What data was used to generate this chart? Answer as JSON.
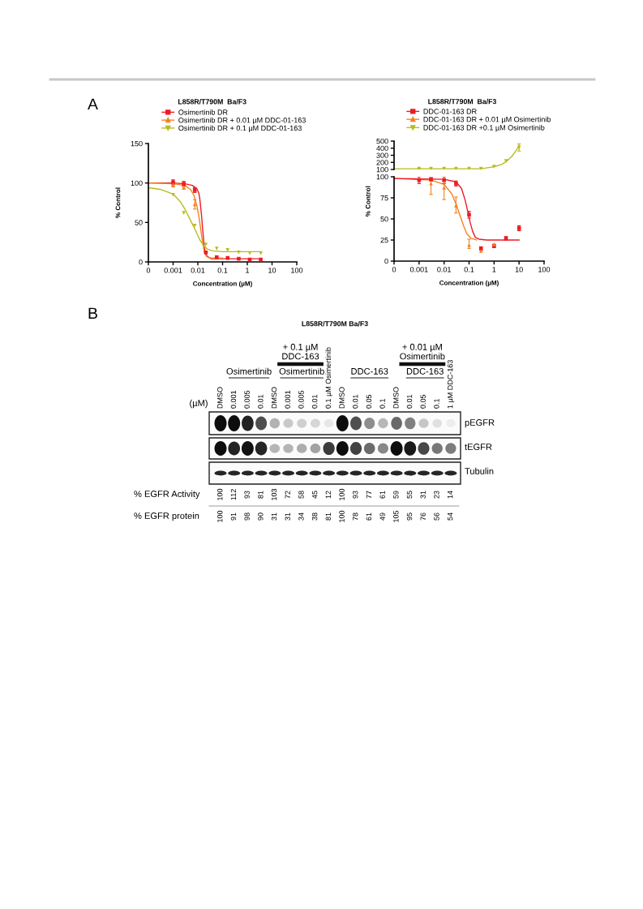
{
  "chart_data": [
    {
      "type": "scatter",
      "title": "L858R/T790M  Ba/F3",
      "xlabel": "Concentration (µM)",
      "ylabel": "% Control",
      "annotations": [
        "A"
      ],
      "log": "x",
      "xlim": [
        0.0001,
        100
      ],
      "xticks": [
        {
          "value": 0.0001,
          "label": "0"
        },
        0.001,
        0.01,
        0.1,
        1,
        10,
        100
      ],
      "ylim": [
        0,
        150
      ],
      "yticks": [
        0,
        50,
        100,
        150
      ],
      "legend": "top",
      "x": [
        0.001,
        0.0027,
        0.0075,
        0.021,
        0.058,
        0.16,
        0.45,
        1.25,
        3.5
      ],
      "series": [
        {
          "type": "line",
          "color": "#ec1c24",
          "marker": "none",
          "x": [
            0.0001,
            0.001,
            0.003,
            0.006,
            0.009,
            0.011,
            0.012,
            0.014,
            0.016,
            0.018,
            0.02,
            0.024,
            0.035,
            0.1,
            3.5
          ],
          "values": [
            100,
            100,
            99,
            97,
            93,
            87,
            80,
            60,
            38,
            20,
            12,
            7,
            4,
            4,
            4
          ]
        },
        {
          "type": "line",
          "color": "#f58220",
          "marker": "none",
          "x": [
            0.0001,
            0.001,
            0.003,
            0.005,
            0.007,
            0.009,
            0.011,
            0.013,
            0.015,
            0.018,
            0.022,
            0.03,
            0.1
          ],
          "values": [
            100,
            99,
            97,
            92,
            84,
            72,
            58,
            42,
            28,
            14,
            7,
            5,
            5
          ]
        },
        {
          "type": "line",
          "color": "#b8bb1e",
          "marker": "none",
          "x": [
            0.0001,
            0.0003,
            0.001,
            0.002,
            0.003,
            0.005,
            0.008,
            0.012,
            0.018,
            0.025,
            0.04,
            0.1,
            3.5
          ],
          "values": [
            94,
            92,
            86,
            76,
            67,
            53,
            40,
            28,
            20,
            16,
            14,
            13,
            13
          ]
        },
        {
          "name": "Osimertinib DR",
          "color": "#ec1c24",
          "marker": "square",
          "values": [
            101,
            99,
            91,
            12,
            6,
            5,
            4,
            3,
            3
          ],
          "errors": [
            3,
            3,
            3,
            null,
            null,
            null,
            null,
            null,
            null
          ]
        },
        {
          "name": "Osimertinib DR + 0.01 µM DDC-01-163",
          "color": "#f58220",
          "marker": "triangle",
          "values": [
            98,
            95,
            73,
            null,
            null,
            null,
            null,
            null,
            null
          ],
          "errors": [
            3,
            3,
            6,
            null,
            null,
            null,
            null,
            null,
            null
          ]
        },
        {
          "name": "Osimertinib DR + 0.1 µM DDC-01-163",
          "color": "#b8bb1e",
          "marker": "triangle_down",
          "values": [
            85,
            62,
            46,
            22,
            17,
            15,
            12,
            11,
            11
          ]
        }
      ]
    },
    {
      "type": "scatter",
      "title": "L858R/T790M  Ba/F3",
      "log": "x",
      "xlim": [
        0.0001,
        100
      ],
      "ylim": [
        100,
        500
      ],
      "yticks": [
        100,
        200,
        300,
        400,
        500
      ],
      "tick_labels": "y",
      "legend": "top",
      "x": [
        0.001,
        0.003,
        0.01,
        0.03,
        0.1,
        0.3,
        1,
        3,
        10
      ],
      "series": [
        {
          "type": "line",
          "color": "#b8bb1e",
          "marker": "none",
          "x": [
            0.0001,
            0.1,
            0.3,
            0.7,
            1,
            2,
            3,
            5,
            7,
            10
          ],
          "values": [
            110,
            110,
            110,
            130,
            140,
            170,
            210,
            280,
            350,
            430
          ]
        },
        {
          "name": "DDC-01-163 DR +0.1 µM Osimertinib",
          "color": "#b8bb1e",
          "marker": "triangle_down",
          "values": [
            110,
            110,
            110,
            110,
            110,
            110,
            140,
            220,
            410
          ],
          "errors": [
            10,
            null,
            null,
            null,
            null,
            null,
            null,
            null,
            50
          ]
        }
      ]
    },
    {
      "type": "scatter",
      "xlabel": "Concentration (µM)",
      "ylabel": "% Control",
      "log": "x",
      "xlim": [
        0.0001,
        100
      ],
      "xticks": [
        {
          "value": 0.0001,
          "label": "0"
        },
        0.001,
        0.01,
        0.1,
        1,
        10,
        100
      ],
      "ylim": [
        0,
        100
      ],
      "yticks": [
        0,
        25,
        50,
        75,
        100
      ],
      "legend": "top",
      "x": [
        0.001,
        0.003,
        0.01,
        0.03,
        0.1,
        0.3,
        1,
        3,
        10
      ],
      "series": [
        {
          "type": "line",
          "color": "#f58220",
          "marker": "none",
          "x": [
            0.0001,
            0.003,
            0.01,
            0.02,
            0.03,
            0.04,
            0.06,
            0.08,
            0.12,
            0.2
          ],
          "values": [
            98,
            96,
            91,
            80,
            68,
            57,
            42,
            33,
            27,
            25
          ]
        },
        {
          "type": "line",
          "color": "#ec1c24",
          "marker": "none",
          "x": [
            0.0001,
            0.01,
            0.03,
            0.05,
            0.07,
            0.09,
            0.11,
            0.14,
            0.18,
            0.25,
            0.5,
            10
          ],
          "values": [
            98,
            97,
            94,
            86,
            72,
            58,
            46,
            35,
            28,
            26,
            25,
            25
          ]
        },
        {
          "name": "DDC-01-163 DR",
          "color": "#ec1c24",
          "marker": "square",
          "values": [
            96,
            97,
            96,
            92,
            55,
            15,
            18,
            27,
            39
          ],
          "errors": [
            4,
            2,
            4,
            3,
            4,
            2,
            2,
            2,
            3
          ]
        },
        {
          "name": "DDC-01-163 DR + 0.01 µM Osimertinib",
          "color": "#f58220",
          "marker": "triangle",
          "values": [
            null,
            92,
            87,
            66,
            19,
            12,
            20,
            null,
            null
          ],
          "errors": [
            null,
            [
              79,
              98
            ],
            [
              73,
              95
            ],
            [
              57,
              76
            ],
            [
              15,
              26
            ],
            null,
            null,
            null,
            null
          ]
        }
      ]
    },
    {
      "type": "other",
      "title": "L858R/T790M Ba/F3",
      "categories": [
        "DMSO",
        "0.001",
        "0.005",
        "0.01",
        "DMSO",
        "0.001",
        "0.005",
        "0.01",
        "0.1 µM Osimertinib",
        "DMSO",
        "0.01",
        "0.05",
        "0.1",
        "DMSO",
        "0.01",
        "0.05",
        "0.1",
        "1 µM DDC-163"
      ],
      "series": [
        {
          "name": "% EGFR Activity",
          "values": [
            100,
            112,
            93,
            81,
            103,
            72,
            58,
            45,
            12,
            100,
            93,
            77,
            61,
            59,
            55,
            31,
            23,
            14
          ]
        },
        {
          "name": "% EGFR protein",
          "values": [
            100,
            91,
            98,
            90,
            31,
            31,
            34,
            38,
            81,
            100,
            78,
            61,
            49,
            105,
            95,
            76,
            56,
            54
          ]
        }
      ],
      "data_labels": true,
      "annotations": [
        "B",
        "Osimertinib",
        "+ 0.1 µM\nDDC-163",
        "Osimertinib",
        "DDC-163",
        "+ 0.01 µM\nOsimertinib",
        "DDC-163",
        "(µM)",
        "pEGFR",
        "tEGFR",
        "Tubulin"
      ]
    }
  ]
}
